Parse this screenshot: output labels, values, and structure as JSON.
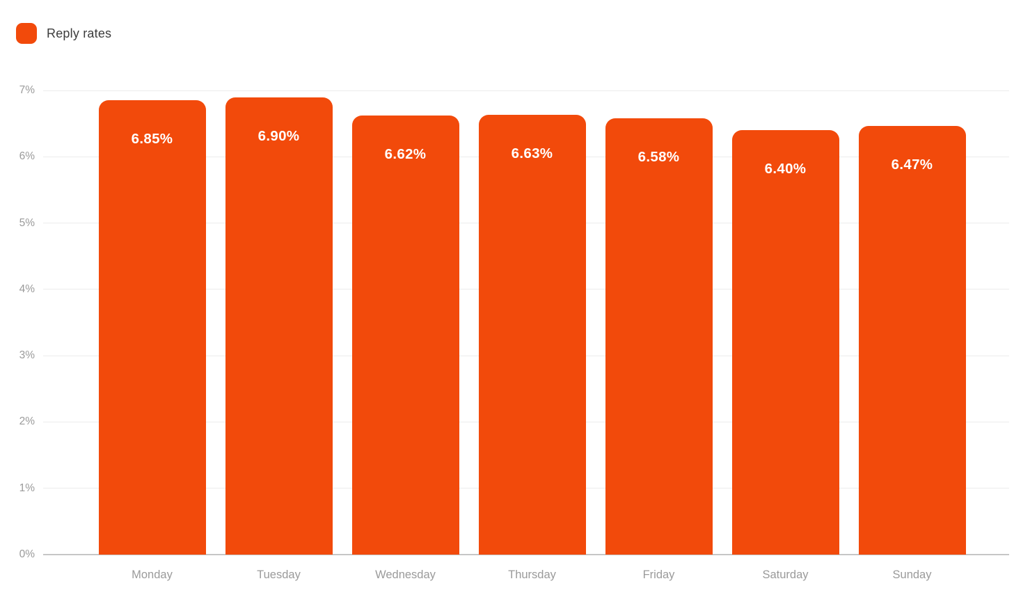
{
  "legend": {
    "label": "Reply rates"
  },
  "chart_data": {
    "type": "bar",
    "title": "",
    "categories": [
      "Monday",
      "Tuesday",
      "Wednesday",
      "Thursday",
      "Friday",
      "Saturday",
      "Sunday"
    ],
    "series": [
      {
        "name": "Reply rates",
        "values": [
          6.85,
          6.9,
          6.62,
          6.63,
          6.58,
          6.4,
          6.47
        ]
      }
    ],
    "bar_labels": [
      "6.85%",
      "6.90%",
      "6.62%",
      "6.63%",
      "6.58%",
      "6.40%",
      "6.47%"
    ],
    "y_tick_labels": [
      "0%",
      "1%",
      "2%",
      "3%",
      "4%",
      "5%",
      "6%",
      "7%"
    ],
    "ylim": [
      0,
      7
    ],
    "grid": true,
    "legend_position": "top-left",
    "colors": {
      "bar": "#f24a0b",
      "bar_label": "#ffffff",
      "axis_label": "#9a9a9a",
      "gridline": "#ececec",
      "axis_line": "#c6c6c6",
      "legend_text": "#3c3c3c"
    }
  }
}
